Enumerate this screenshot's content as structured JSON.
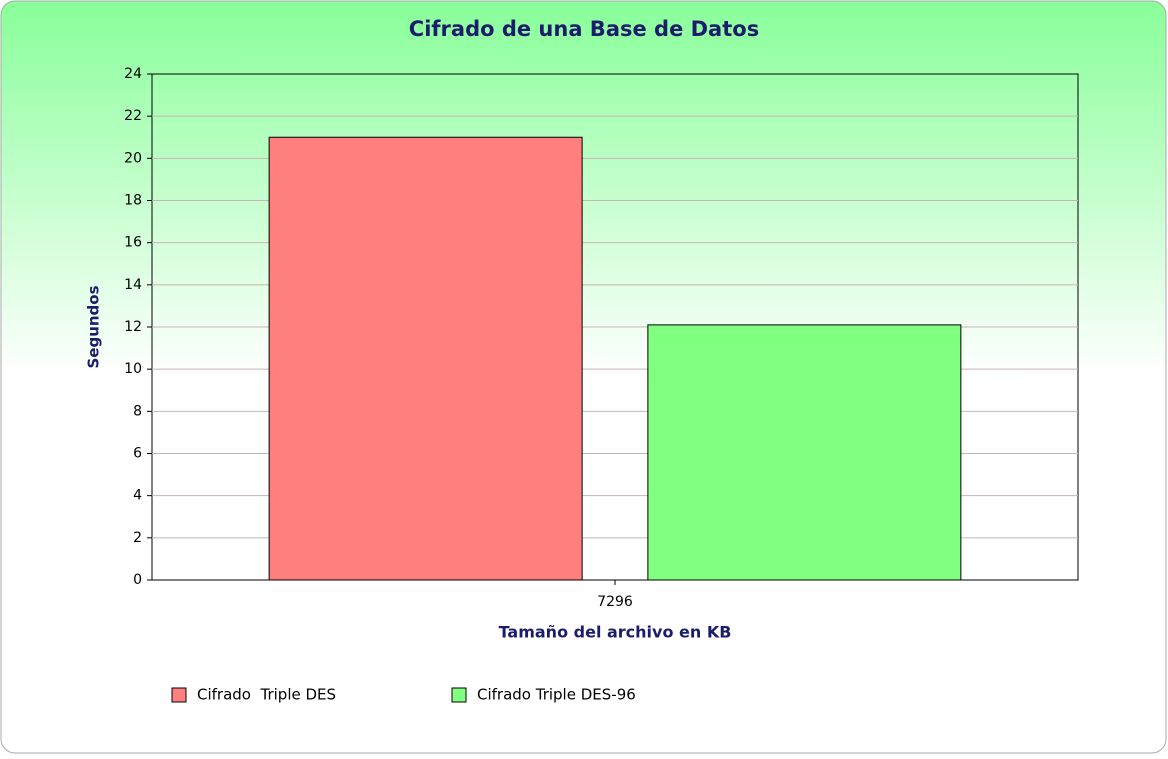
{
  "chart_data": {
    "type": "bar",
    "title": "Cifrado de una Base de Datos",
    "x_label": "Tamaño del archivo en KB",
    "y_label": "Segundos",
    "categories": [
      "7296"
    ],
    "series": [
      {
        "name": "Cifrado  Triple DES",
        "color": "#ff7f7f",
        "values": [
          21
        ]
      },
      {
        "name": "Cifrado Triple DES-96",
        "color": "#80ff80",
        "values": [
          12.1
        ]
      }
    ],
    "ylim": [
      0,
      24
    ],
    "yticks": [
      0,
      2,
      4,
      6,
      8,
      10,
      12,
      14,
      16,
      18,
      20,
      22,
      24
    ],
    "grid": true,
    "legend": "bottom"
  }
}
